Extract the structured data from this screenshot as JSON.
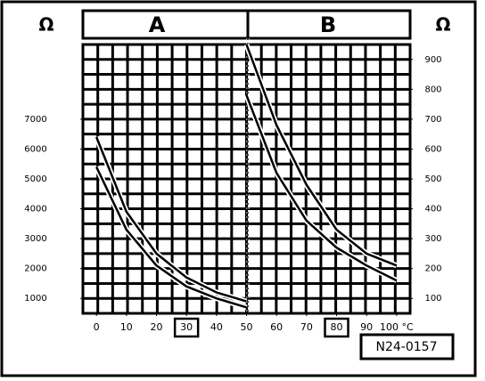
{
  "chart_data": {
    "type": "line",
    "panel_labels": [
      "A",
      "B"
    ],
    "y_label": "Ω",
    "y2_label": "Ω",
    "code": "N24-0157",
    "xlim": [
      -4.5,
      104.5
    ],
    "xticks": [
      0,
      10,
      20,
      30,
      40,
      50,
      60,
      70,
      80,
      90,
      {
        "value": 100,
        "label": "100 °C"
      }
    ],
    "highlight_xticks": [
      30,
      80
    ],
    "ylim": [
      500,
      9500
    ],
    "yticks": [
      1000,
      2000,
      3000,
      4000,
      5000,
      6000,
      7000
    ],
    "y2lim": [
      50,
      950
    ],
    "y2ticks": [
      100,
      200,
      300,
      400,
      500,
      600,
      700,
      800,
      900
    ],
    "grid": true,
    "series": [
      {
        "color": "#000000",
        "x": [
          0,
          10,
          20,
          30,
          40,
          50
        ],
        "values": [
          6400,
          3900,
          2500,
          1700,
          1200,
          900
        ]
      },
      {
        "color": "#000000",
        "x": [
          0,
          10,
          20,
          30,
          40,
          50
        ],
        "values": [
          5400,
          3300,
          2100,
          1400,
          1000,
          700
        ]
      },
      {
        "color": "#000000",
        "axis": "y2",
        "x": [
          50,
          60,
          70,
          80,
          90,
          100
        ],
        "values": [
          950,
          680,
          480,
          330,
          250,
          210
        ]
      },
      {
        "color": "#000000",
        "axis": "y2",
        "x": [
          50,
          60,
          70,
          80,
          90,
          100
        ],
        "values": [
          780,
          520,
          360,
          270,
          210,
          160
        ]
      }
    ]
  }
}
